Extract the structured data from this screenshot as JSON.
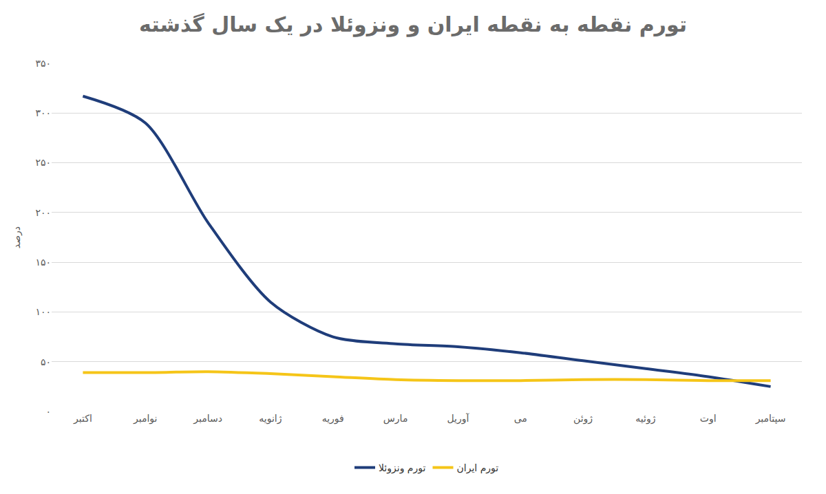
{
  "chart_data": {
    "type": "line",
    "title": "تورم نقطه به نقطه ایران و ونزوئلا در یک سال گذشته",
    "y_label": "درصد",
    "categories": [
      "اکتبر",
      "نوامبر",
      "دسامبر",
      "ژانویه",
      "فوریه",
      "مارس",
      "آوریل",
      "می",
      "ژوئن",
      "ژوئیه",
      "اوت",
      "سپتامبر"
    ],
    "series": [
      {
        "name": "تورم ونزوئلا",
        "color": "#1f3d7a",
        "values": [
          317,
          290,
          190,
          110,
          75,
          68,
          65,
          59,
          51,
          43,
          35,
          25
        ]
      },
      {
        "name": "تورم ایران",
        "color": "#f5c518",
        "values": [
          39,
          39,
          40,
          38,
          35,
          32,
          31,
          31,
          32,
          32,
          31,
          31
        ]
      }
    ],
    "ylim": [
      0,
      350
    ],
    "yticks": [
      {
        "value": 0,
        "label": "۰"
      },
      {
        "value": 50,
        "label": "۵۰"
      },
      {
        "value": 100,
        "label": "۱۰۰"
      },
      {
        "value": 150,
        "label": "۱۵۰"
      },
      {
        "value": 200,
        "label": "۲۰۰"
      },
      {
        "value": 250,
        "label": "۲۵۰"
      },
      {
        "value": 300,
        "label": "۳۰۰"
      },
      {
        "value": 350,
        "label": "۳۵۰"
      }
    ],
    "grid": true,
    "legend": "bottom",
    "line_style": "smooth"
  }
}
